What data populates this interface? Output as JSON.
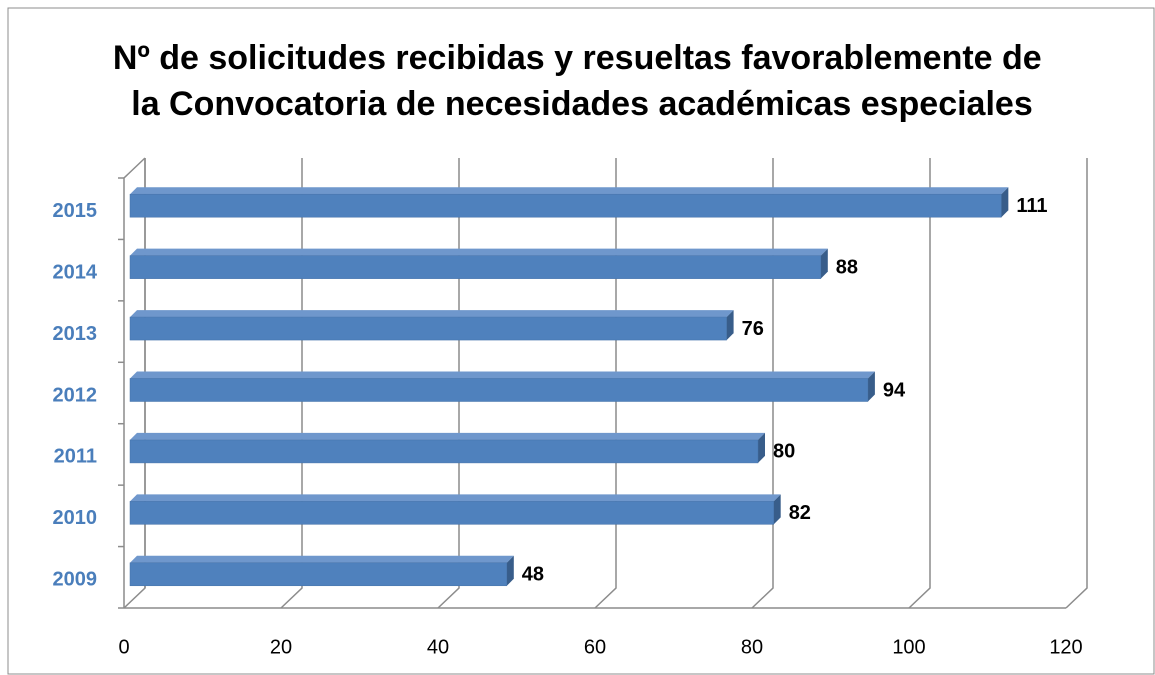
{
  "chart_data": {
    "type": "bar",
    "orientation": "horizontal",
    "title": "Nº de solicitudes recibidas y resueltas favorablemente de la Convocatoria de necesidades académicas especiales",
    "categories": [
      "2009",
      "2010",
      "2011",
      "2012",
      "2013",
      "2014",
      "2015"
    ],
    "values": [
      48,
      82,
      80,
      94,
      76,
      88,
      111
    ],
    "color": "#4f81bd",
    "xlim": [
      0,
      120
    ],
    "xticks": [
      0,
      20,
      40,
      60,
      80,
      100,
      120
    ],
    "grid": true
  }
}
